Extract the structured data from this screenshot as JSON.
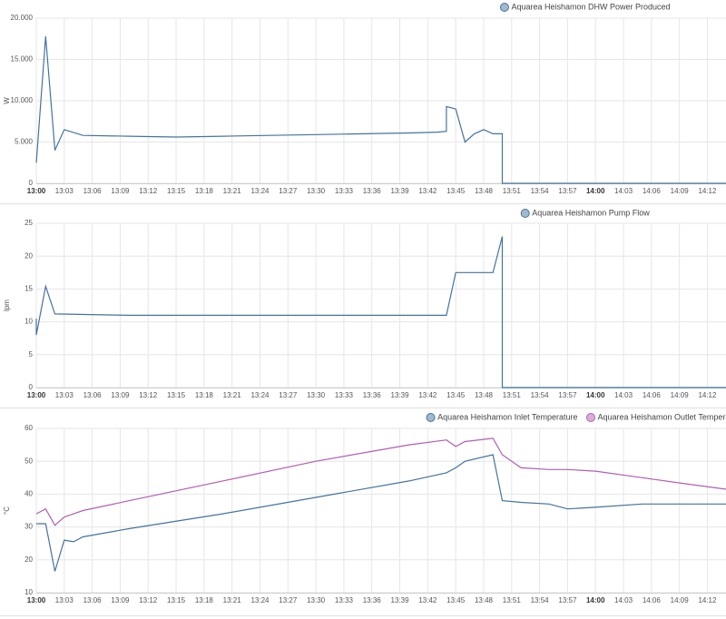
{
  "chart_data": [
    {
      "type": "line",
      "ylabel": "W",
      "ylim": [
        0,
        20000
      ],
      "yticks": [
        0,
        {
          "value": 5000,
          "label": "5.000"
        },
        {
          "value": 10000,
          "label": "10.000"
        },
        {
          "value": 15000,
          "label": "15.000"
        },
        {
          "value": 20000,
          "label": "20.000"
        }
      ],
      "xlim": [
        "13:00",
        "14:14"
      ],
      "xticks": [
        "13:00",
        "13:03",
        "13:06",
        "13:09",
        "13:12",
        "13:15",
        "13:18",
        "13:21",
        "13:24",
        "13:27",
        "13:30",
        "13:33",
        "13:36",
        "13:39",
        "13:42",
        "13:45",
        "13:48",
        "13:51",
        "13:54",
        "13:57",
        "14:00",
        "14:03",
        "14:06",
        "14:09",
        "14:12"
      ],
      "grid": true,
      "x": [
        "13:00",
        "13:01",
        "13:02",
        "13:03",
        "13:05",
        "13:10",
        "13:15",
        "13:20",
        "13:25",
        "13:30",
        "13:35",
        "13:40",
        "13:43",
        "13:44",
        "13:44",
        "13:45",
        "13:46",
        "13:47",
        "13:48",
        "13:49",
        "13:50",
        "13:50",
        "14:14"
      ],
      "series": [
        {
          "name": "Aquarea Heishamon DHW Power Produced",
          "color": "#44739e",
          "values": [
            2500,
            17800,
            4000,
            6500,
            5800,
            5700,
            5600,
            5700,
            5800,
            5900,
            6000,
            6100,
            6200,
            6300,
            9300,
            9000,
            5000,
            6000,
            6500,
            6000,
            6000,
            0,
            0
          ]
        }
      ]
    },
    {
      "type": "line",
      "ylabel": "lpm",
      "ylim": [
        0,
        25
      ],
      "yticks": [
        0,
        5,
        10,
        15,
        20,
        25
      ],
      "xlim": [
        "13:00",
        "14:14"
      ],
      "xticks": [
        "13:00",
        "13:03",
        "13:06",
        "13:09",
        "13:12",
        "13:15",
        "13:18",
        "13:21",
        "13:24",
        "13:27",
        "13:30",
        "13:33",
        "13:36",
        "13:39",
        "13:42",
        "13:45",
        "13:48",
        "13:51",
        "13:54",
        "13:57",
        "14:00",
        "14:03",
        "14:06",
        "14:09",
        "14:12"
      ],
      "grid": true,
      "x": [
        "13:00",
        "13:00",
        "13:01",
        "13:02",
        "13:10",
        "13:20",
        "13:30",
        "13:40",
        "13:44",
        "13:45",
        "13:49",
        "13:50",
        "13:50",
        "14:14"
      ],
      "series": [
        {
          "name": "Aquarea Heishamon Pump Flow",
          "color": "#44739e",
          "values": [
            10.5,
            8,
            15.4,
            11.2,
            11,
            11,
            11,
            11,
            11,
            17.5,
            17.5,
            23,
            0,
            0
          ]
        }
      ]
    },
    {
      "type": "line",
      "ylabel": "°C",
      "ylim": [
        10,
        60
      ],
      "yticks": [
        10,
        20,
        30,
        40,
        50,
        60
      ],
      "xlim": [
        "13:00",
        "14:14"
      ],
      "xticks": [
        "13:00",
        "13:03",
        "13:06",
        "13:09",
        "13:12",
        "13:15",
        "13:18",
        "13:21",
        "13:24",
        "13:27",
        "13:30",
        "13:33",
        "13:36",
        "13:39",
        "13:42",
        "13:45",
        "13:48",
        "13:51",
        "13:54",
        "13:57",
        "14:00",
        "14:03",
        "14:06",
        "14:09",
        "14:12"
      ],
      "grid": true,
      "x": [
        "13:00",
        "13:01",
        "13:02",
        "13:03",
        "13:04",
        "13:05",
        "13:10",
        "13:20",
        "13:30",
        "13:40",
        "13:44",
        "13:45",
        "13:46",
        "13:49",
        "13:50",
        "13:52",
        "13:55",
        "13:57",
        "14:00",
        "14:05",
        "14:10",
        "14:14"
      ],
      "series": [
        {
          "name": "Aquarea Heishamon Inlet Temperature",
          "color": "#44739e",
          "values": [
            31,
            31,
            16.5,
            26,
            25.5,
            27,
            29.5,
            34,
            39,
            44,
            46.5,
            48,
            50,
            52,
            38,
            37.5,
            37,
            35.5,
            36,
            37,
            37,
            37
          ]
        },
        {
          "name": "Aquarea Heishamon Outlet Temperature",
          "color": "#b05fb0",
          "values": [
            34,
            35.5,
            30.5,
            33,
            34,
            35,
            38,
            44,
            50,
            55,
            56.5,
            54.5,
            56,
            57,
            52,
            48,
            47.5,
            47.5,
            47,
            45,
            43,
            41.5
          ]
        }
      ]
    }
  ]
}
